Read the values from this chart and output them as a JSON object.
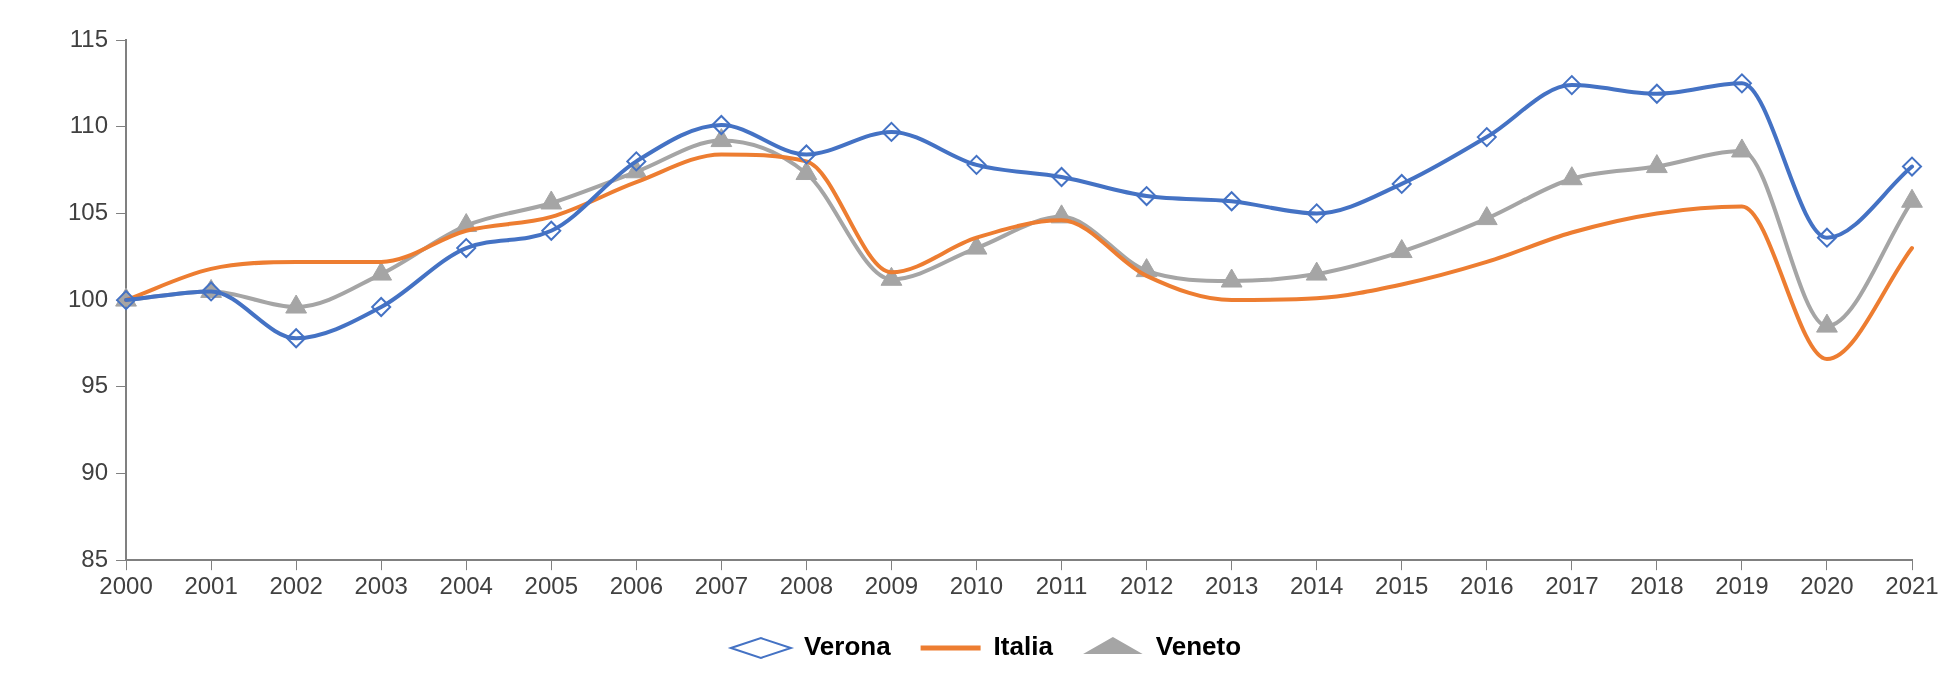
{
  "chart_data": {
    "type": "line",
    "categories": [
      "2000",
      "2001",
      "2002",
      "2003",
      "2004",
      "2005",
      "2006",
      "2007",
      "2008",
      "2009",
      "2010",
      "2011",
      "2012",
      "2013",
      "2014",
      "2015",
      "2016",
      "2017",
      "2018",
      "2019",
      "2020",
      "2021"
    ],
    "series": [
      {
        "name": "Verona",
        "color": "#4472c4",
        "marker": "diamond",
        "values": [
          100,
          100.5,
          97.8,
          99.6,
          103,
          104,
          108,
          110.1,
          108.4,
          109.7,
          107.8,
          107.1,
          106,
          105.7,
          105,
          106.7,
          109.4,
          112.4,
          111.9,
          112.5,
          103.6,
          107.7
        ]
      },
      {
        "name": "Italia",
        "color": "#ed7d31",
        "marker": "none",
        "values": [
          100,
          101.8,
          102.2,
          102.2,
          104,
          104.8,
          106.8,
          108.4,
          108,
          101.6,
          103.6,
          104.6,
          101.4,
          100,
          100.1,
          100.9,
          102.2,
          103.9,
          105,
          105.4,
          96.6,
          103
        ]
      },
      {
        "name": "Veneto",
        "color": "#a5a5a5",
        "marker": "triangle",
        "values": [
          100,
          100.5,
          99.6,
          101.5,
          104.3,
          105.6,
          107.4,
          109.2,
          107.3,
          101.2,
          103,
          104.8,
          101.7,
          101.1,
          101.5,
          102.8,
          104.7,
          107,
          107.7,
          108.6,
          98.5,
          105.7
        ]
      }
    ],
    "ylim": [
      85,
      115
    ],
    "yticks": [
      85,
      90,
      95,
      100,
      105,
      110,
      115
    ],
    "grid": false,
    "legend": "bottom",
    "line_style": "solid"
  }
}
